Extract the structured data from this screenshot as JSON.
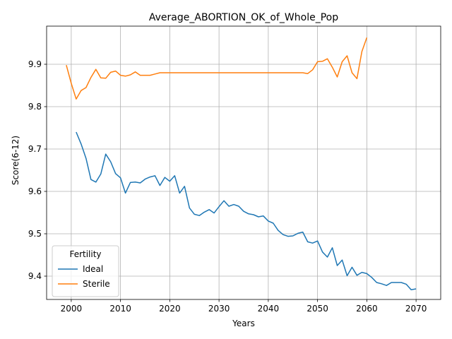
{
  "chart_data": {
    "type": "line",
    "title": "Average_ABORTION_OK_of_Whole_Pop",
    "xlabel": "Years",
    "ylabel": "Score(6-12)",
    "xlim": [
      1995,
      2075
    ],
    "ylim": [
      9.345,
      9.99
    ],
    "xticks": [
      2000,
      2010,
      2020,
      2030,
      2040,
      2050,
      2060,
      2070
    ],
    "yticks": [
      9.4,
      9.5,
      9.6,
      9.7,
      9.8,
      9.9
    ],
    "grid": true,
    "legend": {
      "title": "Fertility",
      "placement": "lower-left"
    },
    "series": [
      {
        "name": "Ideal",
        "color": "#1f77b4",
        "x": [
          2001,
          2002,
          2003,
          2004,
          2005,
          2006,
          2007,
          2008,
          2009,
          2010,
          2011,
          2012,
          2013,
          2014,
          2015,
          2016,
          2017,
          2018,
          2019,
          2020,
          2021,
          2022,
          2023,
          2024,
          2025,
          2026,
          2027,
          2028,
          2029,
          2030,
          2031,
          2032,
          2033,
          2034,
          2035,
          2036,
          2037,
          2038,
          2039,
          2040,
          2041,
          2042,
          2043,
          2044,
          2045,
          2046,
          2047,
          2048,
          2049,
          2050,
          2051,
          2052,
          2053,
          2054,
          2055,
          2056,
          2057,
          2058,
          2059,
          2060,
          2061,
          2062,
          2063,
          2064,
          2065,
          2066,
          2067,
          2068,
          2069,
          2070
        ],
        "y": [
          9.74,
          9.712,
          9.678,
          9.628,
          9.622,
          9.641,
          9.688,
          9.67,
          9.642,
          9.632,
          9.596,
          9.621,
          9.622,
          9.62,
          9.629,
          9.634,
          9.637,
          9.614,
          9.633,
          9.624,
          9.637,
          9.596,
          9.612,
          9.561,
          9.546,
          9.543,
          9.551,
          9.557,
          9.549,
          9.564,
          9.578,
          9.565,
          9.569,
          9.565,
          9.553,
          9.547,
          9.545,
          9.54,
          9.542,
          9.53,
          9.525,
          9.508,
          9.498,
          9.494,
          9.495,
          9.501,
          9.504,
          9.481,
          9.478,
          9.483,
          9.457,
          9.445,
          9.467,
          9.425,
          9.438,
          9.401,
          9.421,
          9.402,
          9.409,
          9.406,
          9.397,
          9.385,
          9.382,
          9.378,
          9.385,
          9.385,
          9.385,
          9.381,
          9.368,
          9.37
        ]
      },
      {
        "name": "Sterile",
        "color": "#ff7f0e",
        "x": [
          1999,
          2000,
          2001,
          2002,
          2003,
          2004,
          2005,
          2006,
          2007,
          2008,
          2009,
          2010,
          2011,
          2012,
          2013,
          2014,
          2015,
          2016,
          2017,
          2018,
          2019,
          2020,
          2021,
          2022,
          2023,
          2024,
          2025,
          2026,
          2027,
          2028,
          2029,
          2030,
          2031,
          2032,
          2033,
          2034,
          2035,
          2036,
          2037,
          2038,
          2039,
          2040,
          2041,
          2042,
          2043,
          2044,
          2045,
          2046,
          2047,
          2048,
          2049,
          2050,
          2051,
          2052,
          2053,
          2054,
          2055,
          2056,
          2057,
          2058,
          2059,
          2060
        ],
        "y": [
          9.898,
          9.855,
          9.818,
          9.838,
          9.845,
          9.869,
          9.888,
          9.868,
          9.867,
          9.881,
          9.884,
          9.874,
          9.872,
          9.875,
          9.882,
          9.874,
          9.874,
          9.874,
          9.877,
          9.88,
          9.88,
          9.88,
          9.88,
          9.88,
          9.88,
          9.88,
          9.88,
          9.88,
          9.88,
          9.88,
          9.88,
          9.88,
          9.88,
          9.88,
          9.88,
          9.88,
          9.88,
          9.88,
          9.88,
          9.88,
          9.88,
          9.88,
          9.88,
          9.88,
          9.88,
          9.88,
          9.88,
          9.88,
          9.88,
          9.878,
          9.887,
          9.906,
          9.907,
          9.913,
          9.893,
          9.87,
          9.906,
          9.92,
          9.88,
          9.866,
          9.93,
          9.963
        ]
      }
    ]
  }
}
